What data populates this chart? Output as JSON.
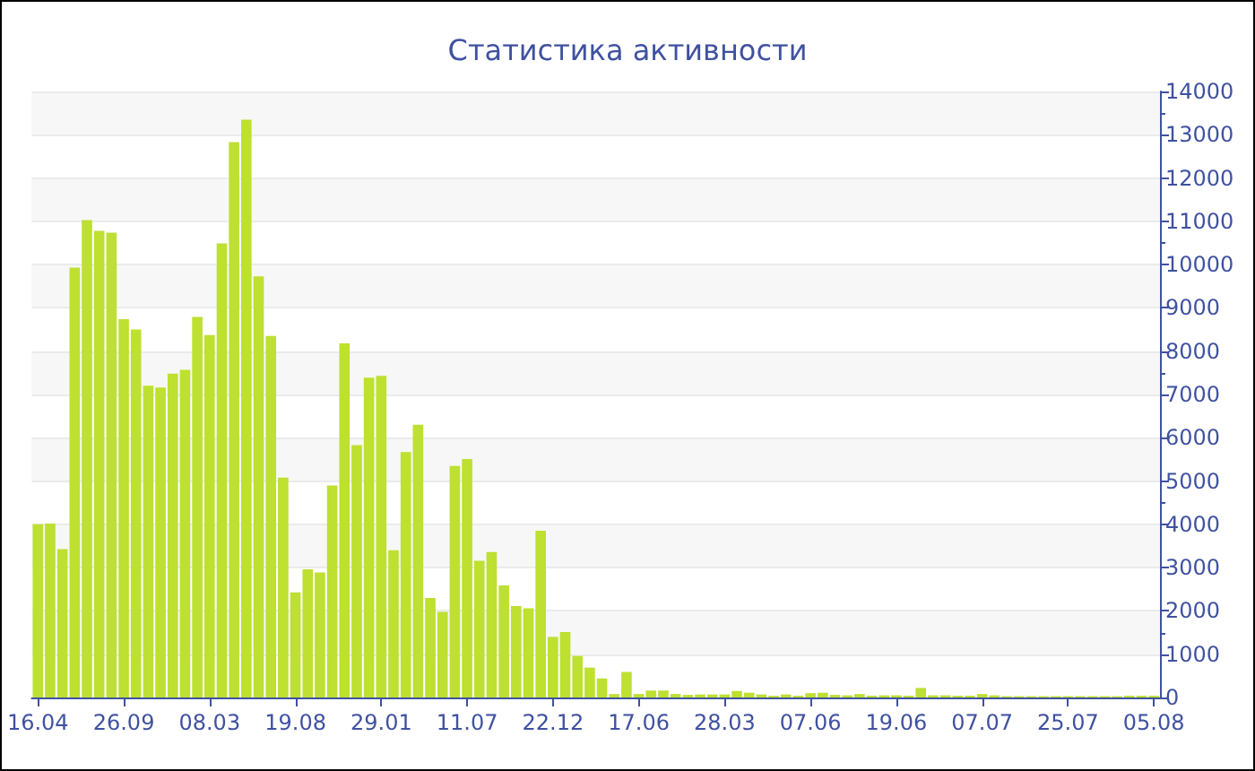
{
  "chart_data": {
    "type": "bar",
    "title": "Статистика активности",
    "categories": [
      "16.04",
      null,
      null,
      null,
      null,
      null,
      null,
      "26.09",
      null,
      null,
      null,
      null,
      null,
      null,
      "08.03",
      null,
      null,
      null,
      null,
      null,
      null,
      "19.08",
      null,
      null,
      null,
      null,
      null,
      null,
      "29.01",
      null,
      null,
      null,
      null,
      null,
      null,
      "11.07",
      null,
      null,
      null,
      null,
      null,
      null,
      "22.12",
      null,
      null,
      null,
      null,
      null,
      null,
      "17.06",
      null,
      null,
      null,
      null,
      null,
      null,
      "28.03",
      null,
      null,
      null,
      null,
      null,
      null,
      "07.06",
      null,
      null,
      null,
      null,
      null,
      null,
      "19.06",
      null,
      null,
      null,
      null,
      null,
      null,
      "07.07",
      null,
      null,
      null,
      null,
      null,
      null,
      "25.07",
      null,
      null,
      null,
      null,
      null,
      null,
      "05.08"
    ],
    "values": [
      4000,
      4020,
      3430,
      9930,
      11030,
      10780,
      10740,
      8740,
      8500,
      7200,
      7160,
      7480,
      7570,
      8790,
      8370,
      10490,
      12830,
      13350,
      9730,
      8350,
      5080,
      2430,
      2960,
      2890,
      4900,
      8180,
      5830,
      7390,
      7430,
      3400,
      5670,
      6300,
      2300,
      1980,
      5350,
      5510,
      3160,
      3360,
      2590,
      2110,
      2060,
      3850,
      1400,
      1510,
      960,
      690,
      440,
      80,
      590,
      80,
      160,
      160,
      80,
      60,
      70,
      70,
      70,
      150,
      110,
      70,
      40,
      70,
      40,
      100,
      110,
      60,
      50,
      80,
      40,
      50,
      50,
      40,
      220,
      50,
      50,
      40,
      40,
      80,
      50,
      30,
      30,
      30,
      30,
      30,
      30,
      30,
      30,
      30,
      30,
      40,
      40,
      40
    ],
    "color": "#bde031",
    "ylim": [
      0,
      14000
    ],
    "yticks": [
      0,
      1000,
      2000,
      3000,
      4000,
      5000,
      6000,
      7000,
      8000,
      9000,
      10000,
      11000,
      12000,
      13000,
      14000
    ],
    "grid": "y"
  }
}
